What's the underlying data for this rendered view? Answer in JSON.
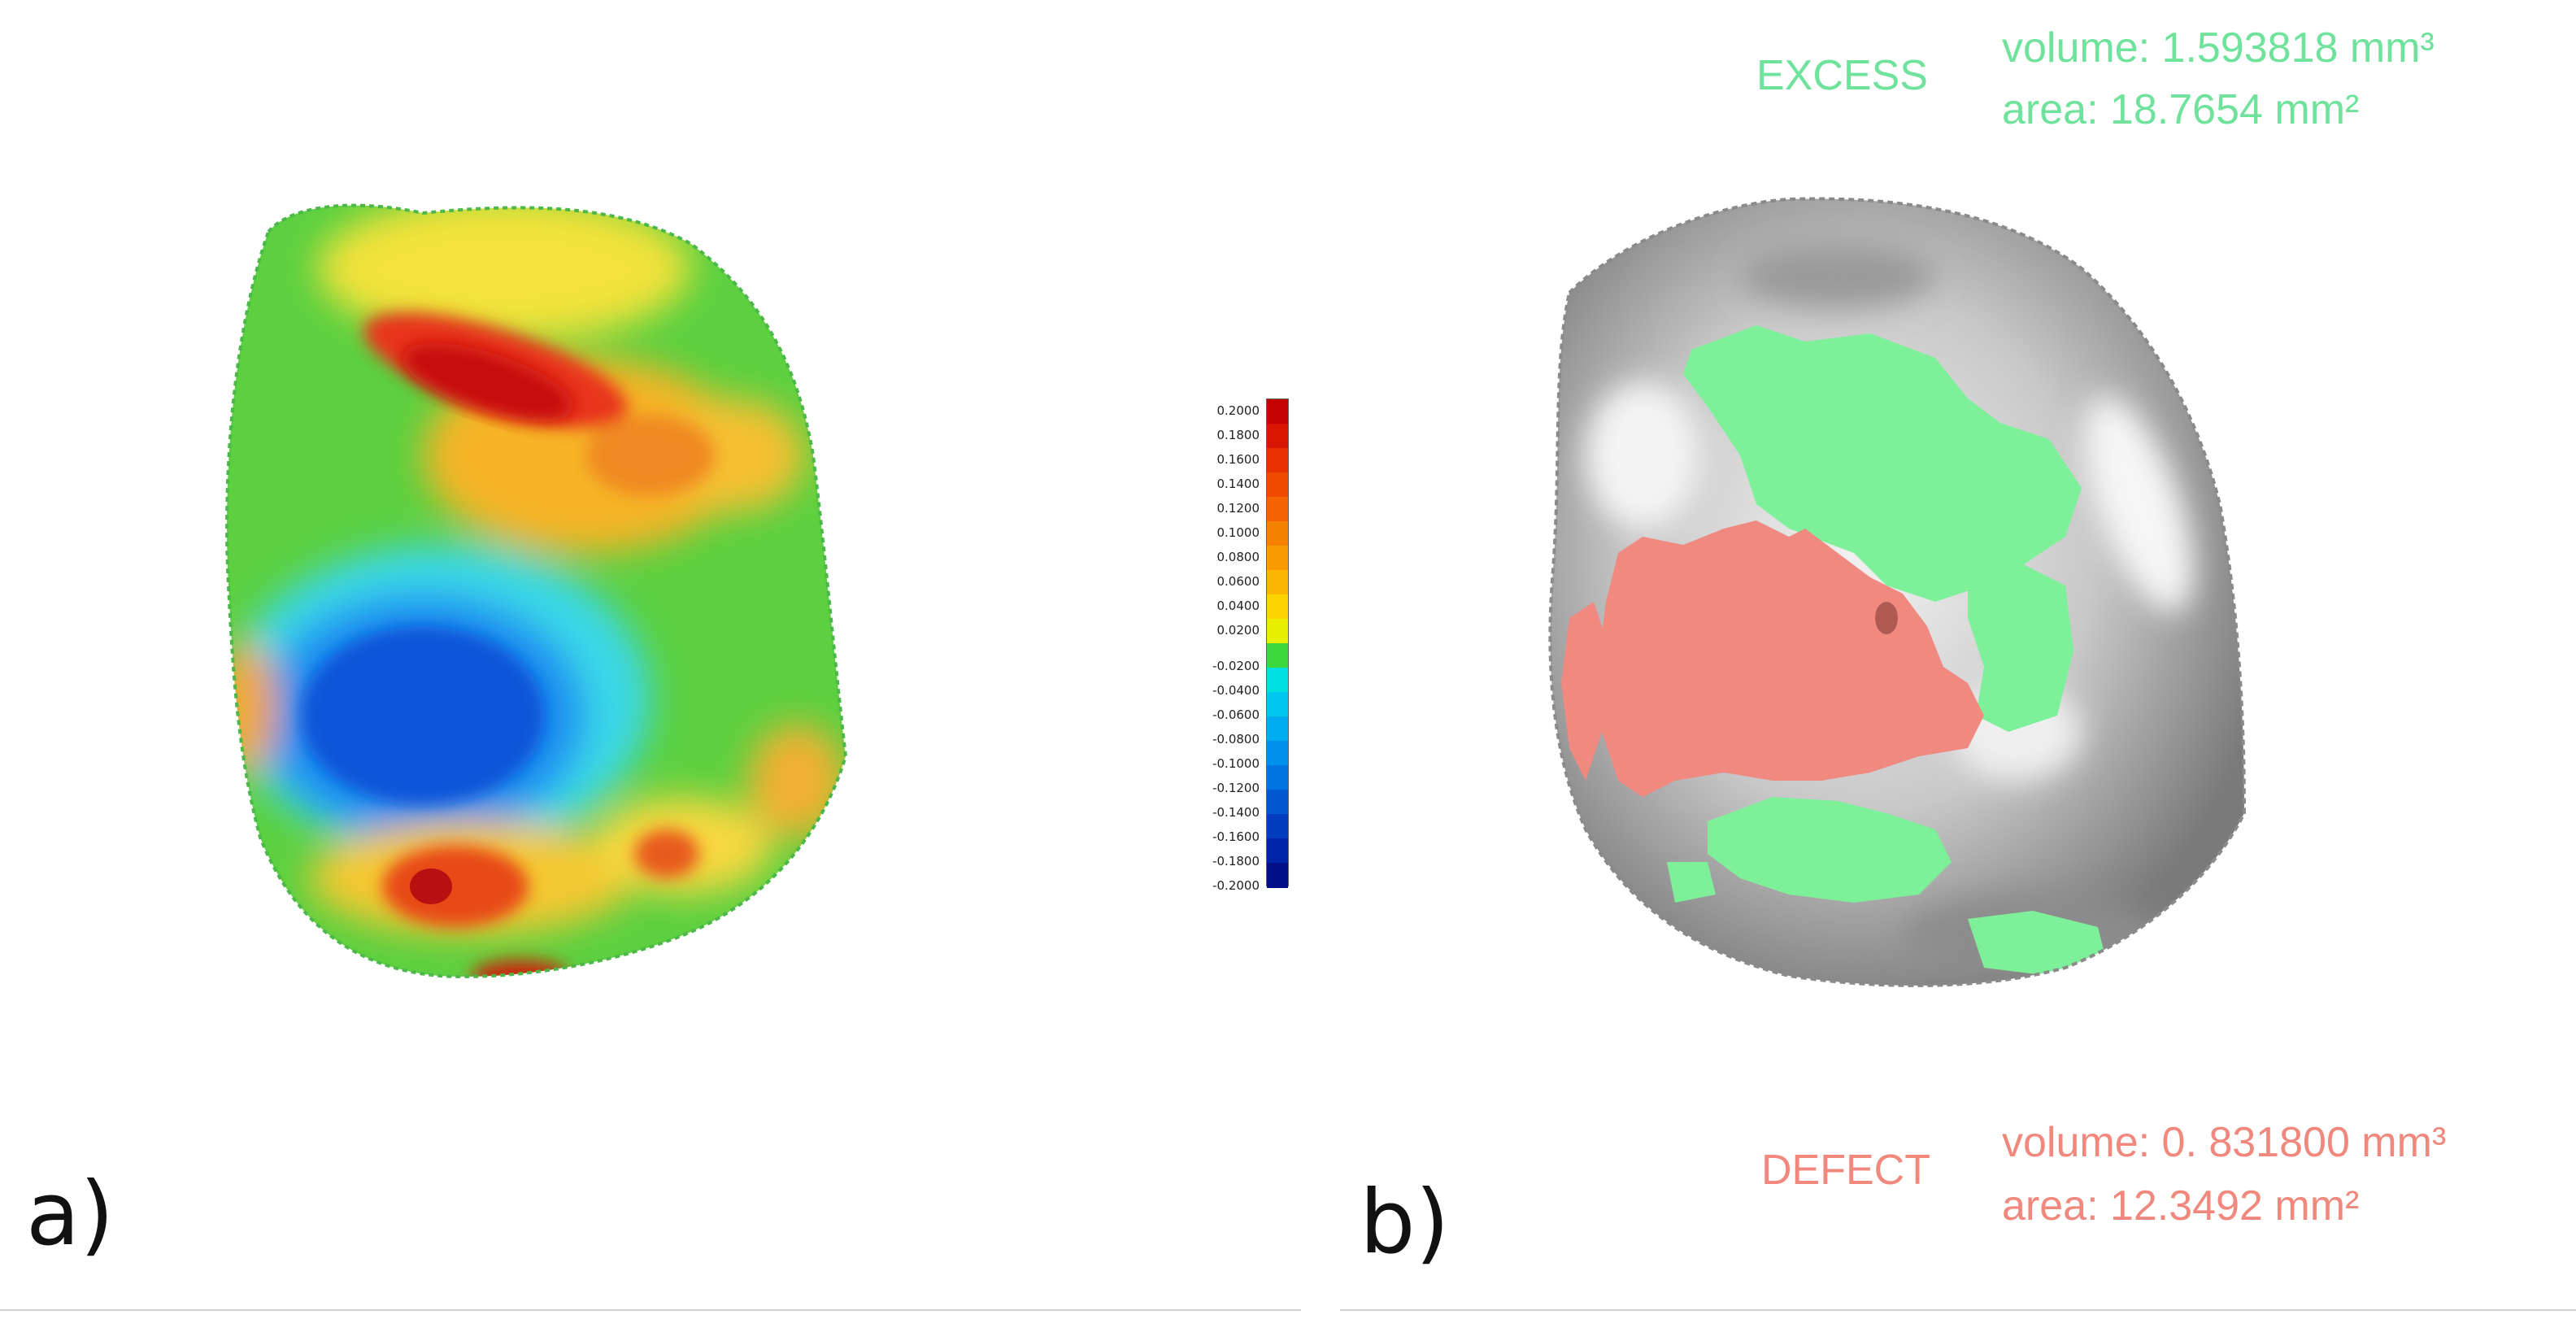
{
  "panels": {
    "a": {
      "label": "a)"
    },
    "b": {
      "label": "b)"
    }
  },
  "color_scale": {
    "ticks": [
      "0.2000",
      "0.1800",
      "0.1600",
      "0.1400",
      "0.1200",
      "0.1000",
      "0.0800",
      "0.0600",
      "0.0400",
      "0.0200",
      "-0.0200",
      "-0.0400",
      "-0.0600",
      "-0.0800",
      "-0.1000",
      "-0.1200",
      "-0.1400",
      "-0.1600",
      "-0.1800",
      "-0.2000"
    ],
    "colors": [
      "#c40000",
      "#d81500",
      "#e83000",
      "#f04a00",
      "#f46400",
      "#f68000",
      "#f89a00",
      "#fab600",
      "#fcd400",
      "#e8f000",
      "#3cd83c",
      "#00e0e0",
      "#00c8f0",
      "#00acf0",
      "#0090ec",
      "#0074e0",
      "#0058d0",
      "#003cc0",
      "#0024a8",
      "#000e88"
    ],
    "range": [
      -0.2,
      0.2
    ]
  },
  "excess": {
    "title": "EXCESS",
    "volume": "volume: 1.593818 mm³",
    "area": "area: 18.7654 mm²",
    "color": "#6fe29b"
  },
  "defect": {
    "title": "DEFECT",
    "volume": "volume: 0. 831800 mm³",
    "area": "area: 12.3492 mm²",
    "color": "#f0887d"
  }
}
